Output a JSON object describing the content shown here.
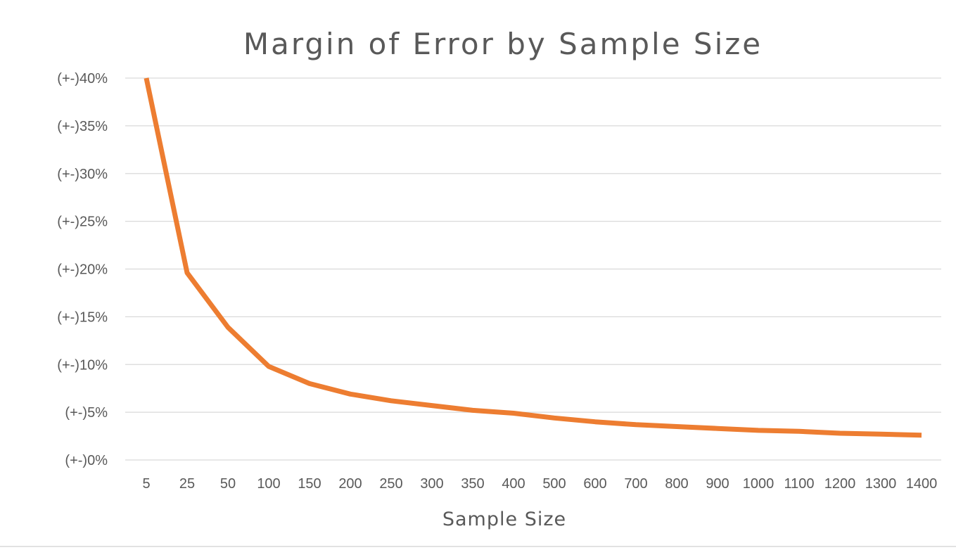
{
  "chart_data": {
    "type": "line",
    "title": "Margin of Error by Sample Size",
    "xlabel": "Sample Size",
    "ylabel": "",
    "categories": [
      "5",
      "25",
      "50",
      "100",
      "150",
      "200",
      "250",
      "300",
      "350",
      "400",
      "500",
      "600",
      "700",
      "800",
      "900",
      "1000",
      "1100",
      "1200",
      "1300",
      "1400"
    ],
    "y_tick_labels": [
      "(+-)0%",
      "(+-)5%",
      "(+-)10%",
      "(+-)15%",
      "(+-)20%",
      "(+-)25%",
      "(+-)30%",
      "(+-)35%",
      "(+-)40%"
    ],
    "y_ticks": [
      0,
      5,
      10,
      15,
      20,
      25,
      30,
      35,
      40
    ],
    "ylim": [
      0,
      40
    ],
    "grid": true,
    "legend": "none",
    "series": [
      {
        "color": "#ed7d31",
        "values": [
          40,
          19.6,
          13.9,
          9.8,
          8.0,
          6.9,
          6.2,
          5.7,
          5.2,
          4.9,
          4.4,
          4.0,
          3.7,
          3.5,
          3.3,
          3.1,
          3.0,
          2.8,
          2.7,
          2.6
        ]
      }
    ]
  }
}
